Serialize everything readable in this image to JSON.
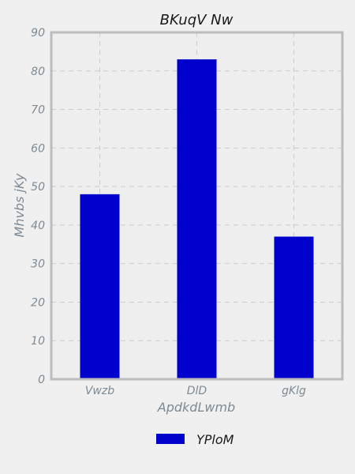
{
  "chart_data": {
    "type": "bar",
    "title": "BKuqV Nw",
    "xlabel": "ApdkdLwmb",
    "ylabel": "Mhvbs jKy",
    "categories": [
      "Vwzb",
      "DlD",
      "gKlg"
    ],
    "series": [
      {
        "name": "YPloM",
        "values": [
          48,
          83,
          37
        ]
      }
    ],
    "ylim": [
      0,
      90
    ],
    "yticks": [
      0,
      10,
      20,
      30,
      40,
      50,
      60,
      70,
      80,
      90
    ],
    "grid": true,
    "legend_position": "bottom-center",
    "colors": {
      "bar": "#0000cc",
      "background": "#f0f0f0",
      "plot_background": "#eeeeee",
      "frame": "#bcbcbc",
      "grid": "#cccccc",
      "tick_text": "#7d8a94",
      "title_text": "#1a1a1a"
    }
  }
}
